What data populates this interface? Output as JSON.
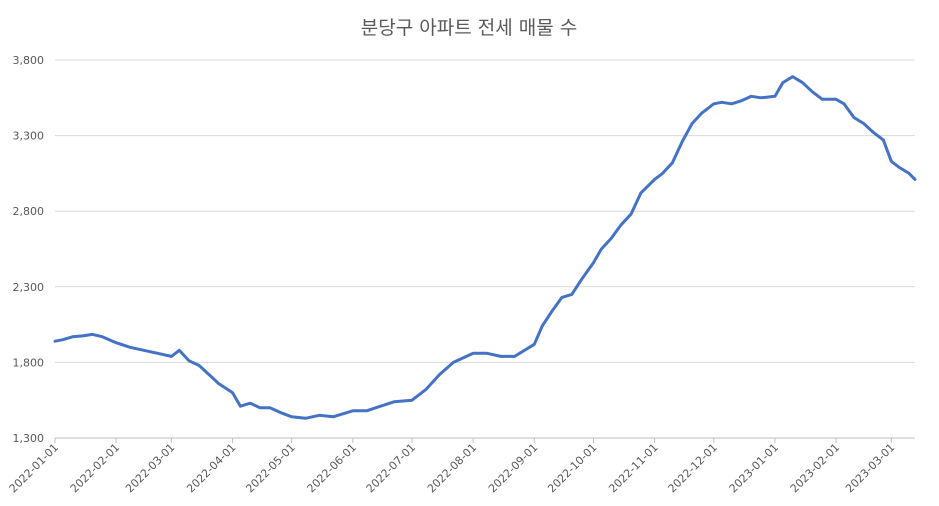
{
  "chart_data": {
    "type": "line",
    "title": "분당구 아파트 전세 매물 수",
    "xlabel": "",
    "ylabel": "",
    "ylim": [
      1300,
      3800
    ],
    "yticks": [
      1300,
      1800,
      2300,
      2800,
      3300,
      3800
    ],
    "ytick_labels": [
      "1,300",
      "1,800",
      "2,300",
      "2,800",
      "3,300",
      "3,800"
    ],
    "xlim": [
      "2022-01-01",
      "2023-03-13"
    ],
    "xticks": [
      "2022-01-01",
      "2022-02-01",
      "2022-03-01",
      "2022-04-01",
      "2022-05-01",
      "2022-06-01",
      "2022-07-01",
      "2022-08-01",
      "2022-09-01",
      "2022-10-01",
      "2022-11-01",
      "2022-12-01",
      "2023-01-01",
      "2023-02-01",
      "2023-03-01"
    ],
    "grid": true,
    "legend": "none",
    "color": "#4472c4",
    "series": [
      {
        "x": [
          "2022-01-01",
          "2022-01-05",
          "2022-01-10",
          "2022-01-15",
          "2022-01-20",
          "2022-01-25",
          "2022-02-01",
          "2022-02-08",
          "2022-02-15",
          "2022-02-22",
          "2022-03-01",
          "2022-03-05",
          "2022-03-10",
          "2022-03-15",
          "2022-03-20",
          "2022-03-25",
          "2022-04-01",
          "2022-04-05",
          "2022-04-10",
          "2022-04-15",
          "2022-04-20",
          "2022-04-25",
          "2022-05-01",
          "2022-05-08",
          "2022-05-15",
          "2022-05-22",
          "2022-06-01",
          "2022-06-08",
          "2022-06-15",
          "2022-06-22",
          "2022-07-01",
          "2022-07-08",
          "2022-07-15",
          "2022-07-22",
          "2022-08-01",
          "2022-08-08",
          "2022-08-15",
          "2022-08-22",
          "2022-09-01",
          "2022-09-05",
          "2022-09-10",
          "2022-09-15",
          "2022-09-20",
          "2022-09-25",
          "2022-10-01",
          "2022-10-05",
          "2022-10-10",
          "2022-10-15",
          "2022-10-20",
          "2022-10-25",
          "2022-11-01",
          "2022-11-05",
          "2022-11-10",
          "2022-11-15",
          "2022-11-20",
          "2022-11-25",
          "2022-12-01",
          "2022-12-05",
          "2022-12-10",
          "2022-12-15",
          "2022-12-20",
          "2022-12-25",
          "2023-01-01",
          "2023-01-05",
          "2023-01-10",
          "2023-01-15",
          "2023-01-20",
          "2023-01-25",
          "2023-02-01",
          "2023-02-05",
          "2023-02-10",
          "2023-02-15",
          "2023-02-20",
          "2023-02-25",
          "2023-03-01",
          "2023-03-05",
          "2023-03-10",
          "2023-03-13"
        ],
        "values": [
          1940,
          1950,
          1970,
          1975,
          1985,
          1970,
          1930,
          1900,
          1880,
          1860,
          1840,
          1880,
          1810,
          1780,
          1720,
          1660,
          1600,
          1510,
          1530,
          1500,
          1500,
          1470,
          1440,
          1430,
          1450,
          1440,
          1480,
          1480,
          1510,
          1540,
          1550,
          1620,
          1720,
          1800,
          1860,
          1860,
          1840,
          1840,
          1920,
          2040,
          2140,
          2230,
          2250,
          2350,
          2460,
          2550,
          2620,
          2710,
          2780,
          2920,
          3010,
          3050,
          3120,
          3260,
          3380,
          3450,
          3510,
          3520,
          3510,
          3530,
          3560,
          3550,
          3560,
          3650,
          3690,
          3650,
          3590,
          3540,
          3540,
          3510,
          3420,
          3380,
          3320,
          3270,
          3130,
          3090,
          3050,
          3010
        ]
      }
    ]
  }
}
